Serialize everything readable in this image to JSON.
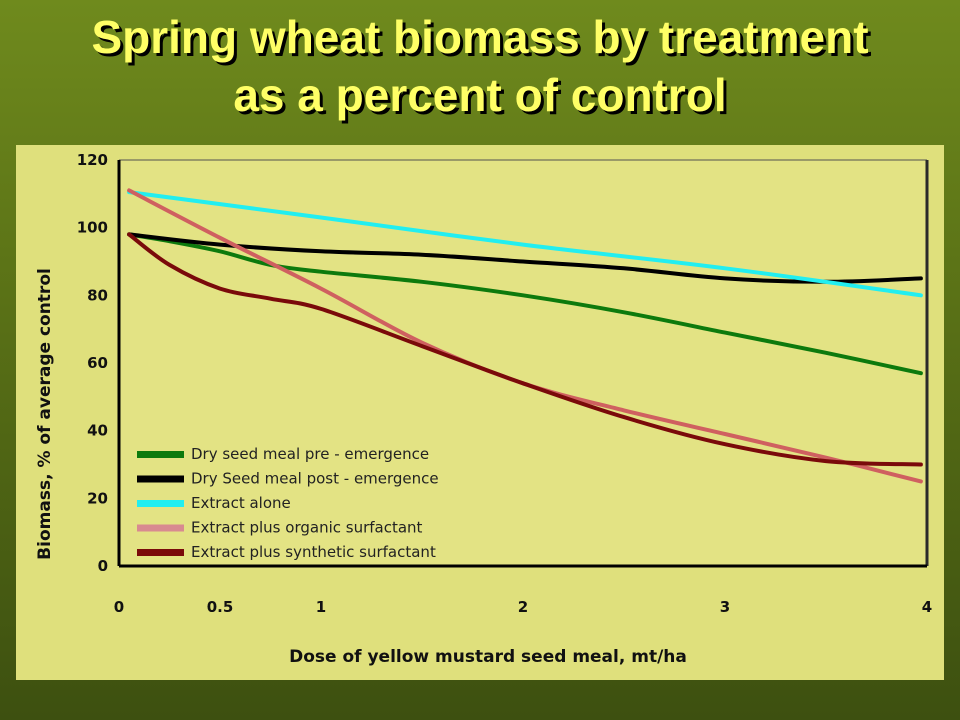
{
  "title": {
    "line1": "Spring wheat biomass by treatment",
    "line2": "as a percent of control"
  },
  "colors": {
    "title": "#ffff66",
    "panel": "#dfe07c",
    "plot_bg": "#e3e384"
  },
  "chart_data": {
    "type": "line",
    "xlabel": "Dose of yellow mustard seed meal, mt/ha",
    "ylabel": "Biomass, % of average control",
    "xlim": [
      0,
      4
    ],
    "ylim": [
      0,
      120
    ],
    "xticks": [
      {
        "value": 0,
        "label": "0"
      },
      {
        "value": 0.5,
        "label": "0.5"
      },
      {
        "value": 1,
        "label": "1"
      },
      {
        "value": 2,
        "label": "2"
      },
      {
        "value": 3,
        "label": "3"
      },
      {
        "value": 4,
        "label": "4"
      }
    ],
    "yticks": [
      0,
      20,
      40,
      60,
      80,
      100,
      120
    ],
    "grid": false,
    "legend_position": "bottom-left",
    "series": [
      {
        "name": "Dry seed meal pre - emergence",
        "color": "#0d7a0d",
        "x": [
          0.05,
          0.25,
          0.5,
          0.75,
          1,
          1.5,
          2,
          2.5,
          3,
          3.5,
          3.97
        ],
        "y": [
          98,
          96,
          93,
          89,
          87,
          84,
          80,
          75,
          69,
          63,
          57
        ]
      },
      {
        "name": "Dry Seed meal post - emergence",
        "color": "#000000",
        "x": [
          0.05,
          0.5,
          1,
          1.5,
          2,
          2.5,
          3,
          3.5,
          3.97
        ],
        "y": [
          98,
          95,
          93,
          92,
          90,
          88,
          85,
          84,
          85
        ]
      },
      {
        "name": "Extract alone",
        "color": "#22eef0",
        "x": [
          0.05,
          1,
          2,
          3,
          3.97
        ],
        "y": [
          110.5,
          103,
          95,
          88,
          80
        ]
      },
      {
        "name": "Extract plus organic surfactant",
        "color": "#cf6060",
        "legend_color": "#d88a90",
        "x": [
          0.05,
          0.5,
          1,
          1.5,
          2,
          2.5,
          3,
          3.5,
          3.97
        ],
        "y": [
          111,
          97,
          82,
          66,
          54,
          46,
          39,
          32,
          25
        ]
      },
      {
        "name": "Extract plus synthetic surfactant",
        "color": "#7a0a0a",
        "x": [
          0.05,
          0.25,
          0.5,
          0.75,
          1,
          1.5,
          2,
          2.5,
          3,
          3.5,
          3.97
        ],
        "y": [
          98,
          89,
          82,
          79,
          76,
          65,
          54,
          44,
          36,
          31,
          30
        ]
      }
    ]
  }
}
